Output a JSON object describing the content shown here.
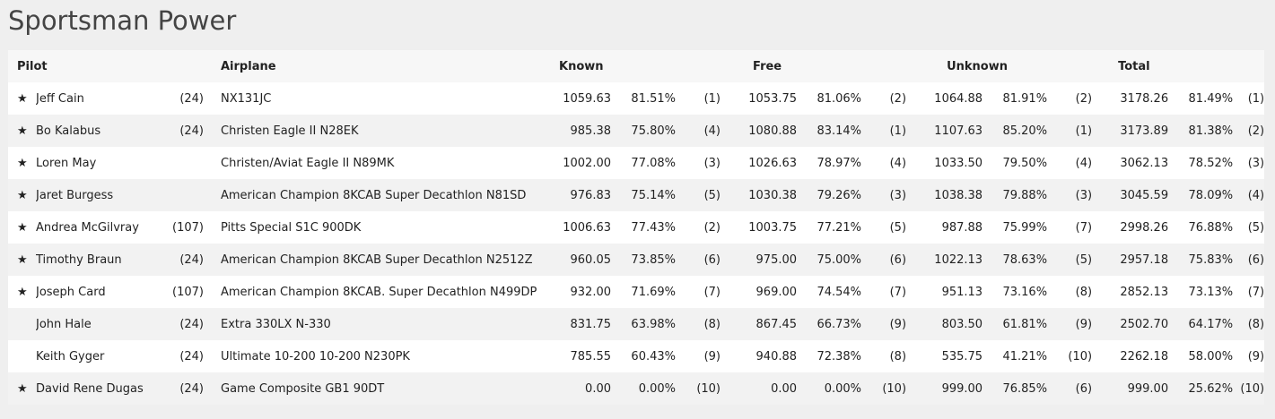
{
  "page": {
    "title": "Sportsman Power"
  },
  "headers": {
    "pilot": "Pilot",
    "airplane": "Airplane",
    "known": "Known",
    "free": "Free",
    "unknown": "Unknown",
    "total": "Total"
  },
  "star_glyph": "★",
  "rows": [
    {
      "star": true,
      "pilot": "Jeff Cain",
      "chapter": "(24)",
      "airplane": "NX131JC",
      "known": [
        "1059.63",
        "81.51%",
        "(1)"
      ],
      "free": [
        "1053.75",
        "81.06%",
        "(2)"
      ],
      "unknown": [
        "1064.88",
        "81.91%",
        "(2)"
      ],
      "total": [
        "3178.26",
        "81.49%",
        "(1)"
      ]
    },
    {
      "star": true,
      "pilot": "Bo Kalabus",
      "chapter": "(24)",
      "airplane": "Christen Eagle II N28EK",
      "known": [
        "985.38",
        "75.80%",
        "(4)"
      ],
      "free": [
        "1080.88",
        "83.14%",
        "(1)"
      ],
      "unknown": [
        "1107.63",
        "85.20%",
        "(1)"
      ],
      "total": [
        "3173.89",
        "81.38%",
        "(2)"
      ]
    },
    {
      "star": true,
      "pilot": "Loren May",
      "chapter": "",
      "airplane": "Christen/Aviat Eagle II N89MK",
      "known": [
        "1002.00",
        "77.08%",
        "(3)"
      ],
      "free": [
        "1026.63",
        "78.97%",
        "(4)"
      ],
      "unknown": [
        "1033.50",
        "79.50%",
        "(4)"
      ],
      "total": [
        "3062.13",
        "78.52%",
        "(3)"
      ]
    },
    {
      "star": true,
      "pilot": "Jaret Burgess",
      "chapter": "",
      "airplane": "American Champion 8KCAB Super Decathlon N81SD",
      "known": [
        "976.83",
        "75.14%",
        "(5)"
      ],
      "free": [
        "1030.38",
        "79.26%",
        "(3)"
      ],
      "unknown": [
        "1038.38",
        "79.88%",
        "(3)"
      ],
      "total": [
        "3045.59",
        "78.09%",
        "(4)"
      ]
    },
    {
      "star": true,
      "pilot": "Andrea McGilvray",
      "chapter": "(107)",
      "airplane": "Pitts Special S1C 900DK",
      "known": [
        "1006.63",
        "77.43%",
        "(2)"
      ],
      "free": [
        "1003.75",
        "77.21%",
        "(5)"
      ],
      "unknown": [
        "987.88",
        "75.99%",
        "(7)"
      ],
      "total": [
        "2998.26",
        "76.88%",
        "(5)"
      ]
    },
    {
      "star": true,
      "pilot": "Timothy Braun",
      "chapter": "(24)",
      "airplane": "American Champion 8KCAB Super Decathlon N2512Z",
      "known": [
        "960.05",
        "73.85%",
        "(6)"
      ],
      "free": [
        "975.00",
        "75.00%",
        "(6)"
      ],
      "unknown": [
        "1022.13",
        "78.63%",
        "(5)"
      ],
      "total": [
        "2957.18",
        "75.83%",
        "(6)"
      ]
    },
    {
      "star": true,
      "pilot": "Joseph Card",
      "chapter": "(107)",
      "airplane": "American Champion 8KCAB. Super Decathlon N499DP",
      "known": [
        "932.00",
        "71.69%",
        "(7)"
      ],
      "free": [
        "969.00",
        "74.54%",
        "(7)"
      ],
      "unknown": [
        "951.13",
        "73.16%",
        "(8)"
      ],
      "total": [
        "2852.13",
        "73.13%",
        "(7)"
      ]
    },
    {
      "star": false,
      "pilot": "John Hale",
      "chapter": "(24)",
      "airplane": "Extra 330LX N-330",
      "known": [
        "831.75",
        "63.98%",
        "(8)"
      ],
      "free": [
        "867.45",
        "66.73%",
        "(9)"
      ],
      "unknown": [
        "803.50",
        "61.81%",
        "(9)"
      ],
      "total": [
        "2502.70",
        "64.17%",
        "(8)"
      ]
    },
    {
      "star": false,
      "pilot": "Keith Gyger",
      "chapter": "(24)",
      "airplane": "Ultimate 10-200 10-200 N230PK",
      "known": [
        "785.55",
        "60.43%",
        "(9)"
      ],
      "free": [
        "940.88",
        "72.38%",
        "(8)"
      ],
      "unknown": [
        "535.75",
        "41.21%",
        "(10)"
      ],
      "total": [
        "2262.18",
        "58.00%",
        "(9)"
      ]
    },
    {
      "star": true,
      "pilot": "David Rene Dugas",
      "chapter": "(24)",
      "airplane": "Game Composite GB1 90DT",
      "known": [
        "0.00",
        "0.00%",
        "(10)"
      ],
      "free": [
        "0.00",
        "0.00%",
        "(10)"
      ],
      "unknown": [
        "999.00",
        "76.85%",
        "(6)"
      ],
      "total": [
        "999.00",
        "25.62%",
        "(10)"
      ]
    }
  ]
}
